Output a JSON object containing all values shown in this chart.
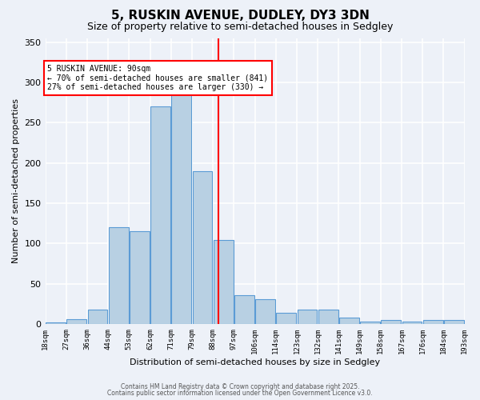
{
  "title1": "5, RUSKIN AVENUE, DUDLEY, DY3 3DN",
  "title2": "Size of property relative to semi-detached houses in Sedgley",
  "xlabel": "Distribution of semi-detached houses by size in Sedgley",
  "ylabel": "Number of semi-detached properties",
  "bar_labels": [
    "18sqm",
    "27sqm",
    "36sqm",
    "44sqm",
    "53sqm",
    "62sqm",
    "71sqm",
    "79sqm",
    "88sqm",
    "97sqm",
    "106sqm",
    "114sqm",
    "123sqm",
    "132sqm",
    "141sqm",
    "149sqm",
    "158sqm",
    "167sqm",
    "176sqm",
    "184sqm",
    "193sqm"
  ],
  "bar_values": [
    2,
    6,
    18,
    120,
    115,
    270,
    285,
    190,
    104,
    36,
    31,
    14,
    18,
    18,
    8,
    3,
    5,
    3,
    5,
    5
  ],
  "bin_edges": [
    13.5,
    22.5,
    31.5,
    40.5,
    49.5,
    58.5,
    67.5,
    76.5,
    85.5,
    94.5,
    103.5,
    112.5,
    121.5,
    130.5,
    139.5,
    148.5,
    157.5,
    166.5,
    175.5,
    184.5,
    193.5
  ],
  "red_line_x": 88.0,
  "annotation_title": "5 RUSKIN AVENUE: 90sqm",
  "annotation_line1": "← 70% of semi-detached houses are smaller (841)",
  "annotation_line2": "27% of semi-detached houses are larger (330) →",
  "bar_color": "#b8d0e3",
  "bar_edgecolor": "#5b9bd5",
  "bg_color": "#edf1f8",
  "grid_color": "#ffffff",
  "ylim": [
    0,
    355
  ],
  "yticks": [
    0,
    50,
    100,
    150,
    200,
    250,
    300,
    350
  ],
  "footer1": "Contains HM Land Registry data © Crown copyright and database right 2025.",
  "footer2": "Contains public sector information licensed under the Open Government Licence v3.0."
}
